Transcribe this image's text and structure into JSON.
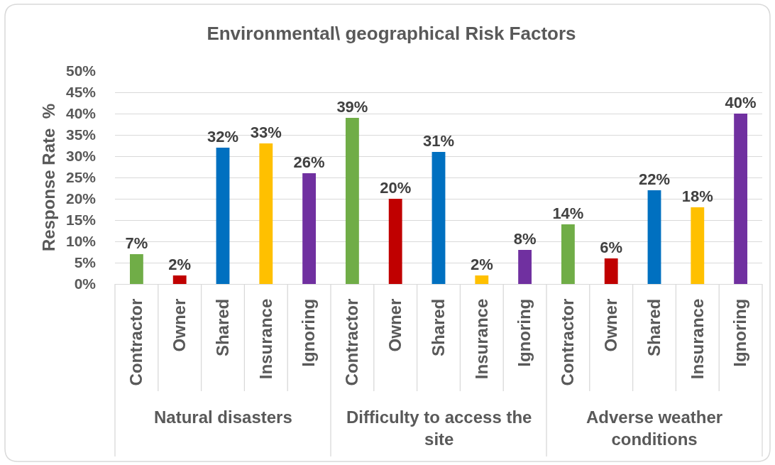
{
  "chart_data": {
    "type": "bar",
    "title": "Environmental\\ geographical Risk Factors",
    "ylabel": "Response Rate  %",
    "categories": [
      "Contractor",
      "Owner",
      "Shared",
      "Insurance",
      "Ignoring",
      "Contractor",
      "Owner",
      "Shared",
      "Insurance",
      "Ignoring",
      "Contractor",
      "Owner",
      "Shared",
      "Insurance",
      "Ignoring"
    ],
    "values": [
      7,
      2,
      32,
      33,
      26,
      39,
      20,
      31,
      2,
      8,
      14,
      6,
      22,
      18,
      40
    ],
    "value_labels": [
      "7%",
      "2%",
      "32%",
      "33%",
      "26%",
      "39%",
      "20%",
      "31%",
      "2%",
      "8%",
      "14%",
      "6%",
      "22%",
      "18%",
      "40%"
    ],
    "colors": [
      "#70ad47",
      "#c00000",
      "#0070c0",
      "#ffc000",
      "#7030a0",
      "#70ad47",
      "#c00000",
      "#0070c0",
      "#ffc000",
      "#7030a0",
      "#70ad47",
      "#c00000",
      "#0070c0",
      "#ffc000",
      "#7030a0"
    ],
    "ylim": [
      0,
      50
    ],
    "yticks": [
      {
        "value": 0,
        "label": "0%"
      },
      {
        "value": 5,
        "label": "5%"
      },
      {
        "value": 10,
        "label": "10%"
      },
      {
        "value": 15,
        "label": "15%"
      },
      {
        "value": 20,
        "label": "20%"
      },
      {
        "value": 25,
        "label": "25%"
      },
      {
        "value": 30,
        "label": "30%"
      },
      {
        "value": 35,
        "label": "35%"
      },
      {
        "value": 40,
        "label": "40%"
      },
      {
        "value": 45,
        "label": "45%"
      },
      {
        "value": 50,
        "label": "50%"
      }
    ],
    "annotations": [
      "Natural disasters",
      "Difficulty to access the site",
      "Adverse weather conditions"
    ],
    "grid": "y"
  }
}
